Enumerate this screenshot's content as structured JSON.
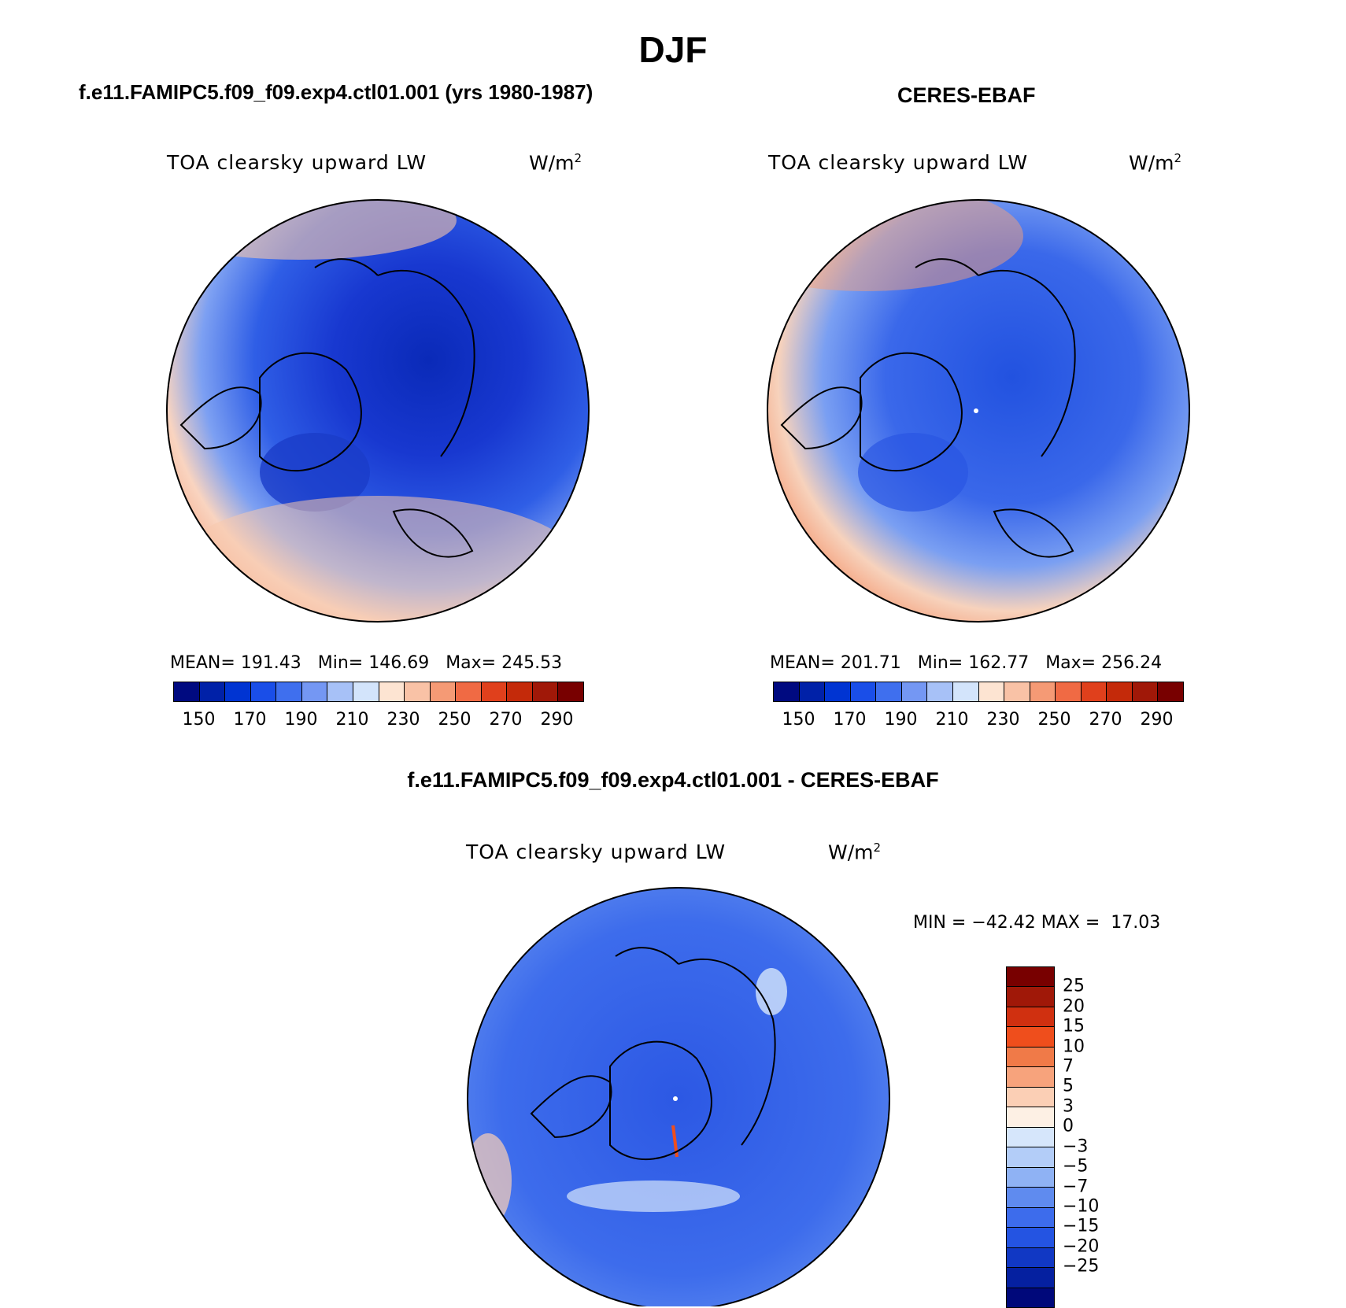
{
  "figure": {
    "title": "DJF"
  },
  "panels": [
    {
      "title": "f.e11.FAMIPC5.f09_f09.exp4.ctl01.001 (yrs 1980-1987)",
      "variable": "TOA clearsky upward LW",
      "units": "W/m",
      "units_sup": "2",
      "stats": {
        "mean": "191.43",
        "min": "146.69",
        "max": "245.53"
      },
      "stats_text": "MEAN= 191.43   Min= 146.69   Max= 245.53"
    },
    {
      "title": "CERES-EBAF",
      "variable": "TOA clearsky upward LW",
      "units": "W/m",
      "units_sup": "2",
      "stats": {
        "mean": "201.71",
        "min": "162.77",
        "max": "256.24"
      },
      "stats_text": "MEAN= 201.71   Min= 162.77   Max= 256.24"
    }
  ],
  "diff_panel": {
    "title": "f.e11.FAMIPC5.f09_f09.exp4.ctl01.001 - CERES-EBAF",
    "variable": "TOA clearsky upward LW",
    "units": "W/m",
    "units_sup": "2",
    "stats_text": "MIN = −42.42 MAX =  17.03",
    "stats": {
      "min": "-42.42",
      "max": "17.03"
    }
  },
  "colorbar_main": {
    "colors": [
      "#000a80",
      "#0021a8",
      "#0034d2",
      "#1a4ee8",
      "#3f6fee",
      "#7497f3",
      "#a7c1f7",
      "#d3e4fb",
      "#fde4d2",
      "#f9c2a6",
      "#f59a75",
      "#f06a44",
      "#e0401c",
      "#c42a0a",
      "#a01808",
      "#780000"
    ],
    "tick_labels": [
      "150",
      "170",
      "190",
      "210",
      "230",
      "250",
      "270",
      "290"
    ]
  },
  "colorbar_diff": {
    "colors": [
      "#780000",
      "#a01808",
      "#d03010",
      "#ef4e1c",
      "#f07a48",
      "#f7a37c",
      "#fbcfb5",
      "#fdf0e4",
      "#d6e6fb",
      "#b3cdf8",
      "#8fb2f4",
      "#5f8bef",
      "#3d6cec",
      "#2454e2",
      "#1138c4",
      "#0520a0",
      "#00087a"
    ],
    "tick_labels": [
      "25",
      "20",
      "15",
      "10",
      "7",
      "5",
      "3",
      "0",
      "−3",
      "−5",
      "−7",
      "−10",
      "−15",
      "−20",
      "−25"
    ]
  },
  "map_data": {
    "projection": "north polar stereographic",
    "panels": [
      {
        "name": "model",
        "mean": 191.43,
        "min": 146.69,
        "max": 245.53
      },
      {
        "name": "CERES-EBAF",
        "mean": 201.71,
        "min": 162.77,
        "max": 256.24
      },
      {
        "name": "difference",
        "min": -42.42,
        "max": 17.03
      }
    ]
  }
}
